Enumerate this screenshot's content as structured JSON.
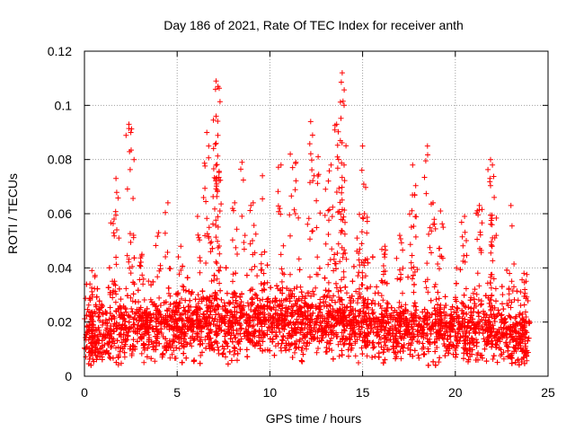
{
  "chart_data": {
    "type": "scatter",
    "title": "Day 186 of 2021, Rate Of TEC Index for receiver anth",
    "xlabel": "GPS time / hours",
    "ylabel": "ROTI / TECUs",
    "xlim": [
      0,
      25
    ],
    "ylim": [
      0,
      0.12
    ],
    "xticks": [
      0,
      5,
      10,
      15,
      20,
      25
    ],
    "yticks": [
      0,
      0.02,
      0.04,
      0.06,
      0.08,
      0.1,
      0.12
    ],
    "xtick_labels": [
      "0",
      "5",
      "10",
      "15",
      "20",
      "25"
    ],
    "ytick_labels": [
      "0",
      "0.02",
      "0.04",
      "0.06",
      "0.08",
      "0.1",
      "0.12"
    ],
    "grid": true,
    "marker": "+",
    "color": "#ff0000",
    "series": [
      {
        "name": "ROTI",
        "x_range": [
          0,
          24
        ],
        "typical_band": [
          0.008,
          0.03
        ],
        "baseline_by_hour": [
          [
            0,
            0.014
          ],
          [
            2,
            0.017
          ],
          [
            4,
            0.018
          ],
          [
            6,
            0.018
          ],
          [
            8,
            0.019
          ],
          [
            10,
            0.02
          ],
          [
            12,
            0.019
          ],
          [
            14,
            0.019
          ],
          [
            16,
            0.018
          ],
          [
            18,
            0.017
          ],
          [
            20,
            0.017
          ],
          [
            22,
            0.016
          ],
          [
            24,
            0.014
          ]
        ],
        "peaks": [
          [
            0.4,
            0.039
          ],
          [
            1.6,
            0.058
          ],
          [
            1.7,
            0.073
          ],
          [
            2.4,
            0.093
          ],
          [
            2.5,
            0.09
          ],
          [
            3.1,
            0.045
          ],
          [
            4.0,
            0.053
          ],
          [
            4.5,
            0.064
          ],
          [
            5.2,
            0.048
          ],
          [
            6.1,
            0.059
          ],
          [
            6.6,
            0.09
          ],
          [
            6.7,
            0.085
          ],
          [
            7.1,
            0.109
          ],
          [
            7.2,
            0.107
          ],
          [
            7.1,
            0.096
          ],
          [
            7.1,
            0.086
          ],
          [
            8.1,
            0.064
          ],
          [
            8.5,
            0.079
          ],
          [
            9.1,
            0.064
          ],
          [
            9.6,
            0.074
          ],
          [
            10.6,
            0.078
          ],
          [
            11.1,
            0.082
          ],
          [
            11.4,
            0.079
          ],
          [
            12.2,
            0.094
          ],
          [
            12.3,
            0.089
          ],
          [
            12.6,
            0.081
          ],
          [
            13.0,
            0.069
          ],
          [
            13.3,
            0.078
          ],
          [
            13.6,
            0.093
          ],
          [
            13.8,
            0.087
          ],
          [
            13.9,
            0.112
          ],
          [
            14.0,
            0.1
          ],
          [
            14.0,
            0.078
          ],
          [
            14.7,
            0.051
          ],
          [
            15.0,
            0.085
          ],
          [
            15.1,
            0.06
          ],
          [
            16.2,
            0.048
          ],
          [
            17.0,
            0.052
          ],
          [
            17.7,
            0.078
          ],
          [
            17.8,
            0.067
          ],
          [
            18.5,
            0.085
          ],
          [
            18.8,
            0.064
          ],
          [
            19.2,
            0.061
          ],
          [
            20.5,
            0.059
          ],
          [
            21.3,
            0.063
          ],
          [
            21.9,
            0.08
          ],
          [
            22.0,
            0.078
          ],
          [
            22.1,
            0.066
          ],
          [
            23.0,
            0.063
          ],
          [
            23.7,
            0.038
          ]
        ]
      }
    ]
  }
}
